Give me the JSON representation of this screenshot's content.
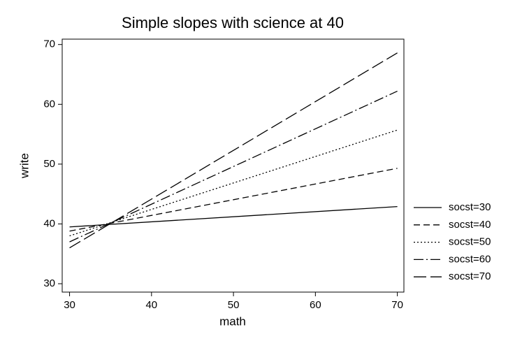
{
  "chart_data": {
    "type": "line",
    "title": "Simple slopes with science at 40",
    "x_label": "math",
    "y_label": "write",
    "x": [
      30,
      70
    ],
    "series": [
      {
        "name": "socst=30",
        "color": "#000000",
        "dash": "none",
        "values": [
          39.5,
          42.9
        ]
      },
      {
        "name": "socst=40",
        "color": "#000000",
        "dash": "9 5",
        "values": [
          38.8,
          49.3
        ]
      },
      {
        "name": "socst=50",
        "color": "#000000",
        "dash": "2 3",
        "values": [
          38.0,
          55.7
        ]
      },
      {
        "name": "socst=60",
        "color": "#000000",
        "dash": "14 4 2 4",
        "values": [
          37.0,
          62.2
        ]
      },
      {
        "name": "socst=70",
        "color": "#000000",
        "dash": "18 6",
        "values": [
          36.0,
          68.6
        ]
      }
    ],
    "xlim": [
      29.1,
      70.8
    ],
    "ylim": [
      28.6,
      70.9
    ],
    "xticks": [
      30,
      40,
      50,
      60,
      70
    ],
    "yticks": [
      30,
      40,
      50,
      60,
      70
    ],
    "grid": false,
    "legend": "right"
  }
}
